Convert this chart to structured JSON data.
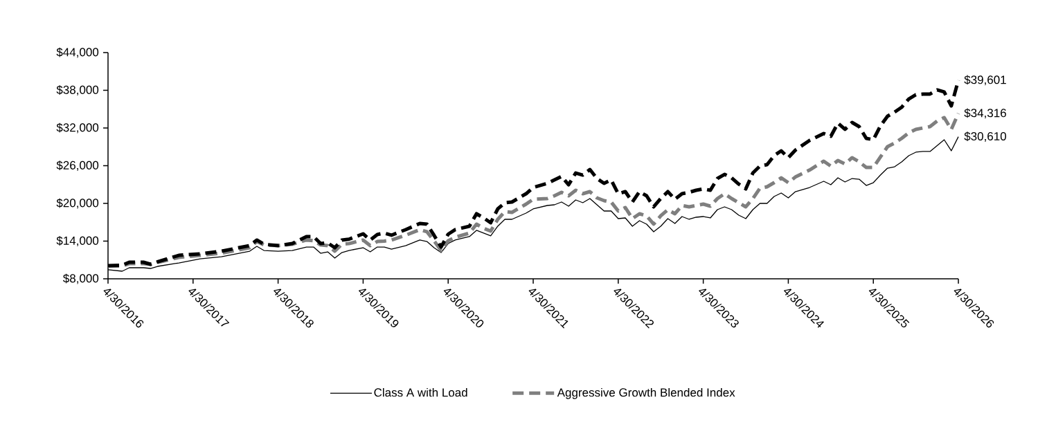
{
  "chart_data": {
    "type": "line",
    "xlim": [
      "2016-04",
      "2026-04"
    ],
    "xticks": [
      {
        "value": "2016-04",
        "label": "4/30/2016"
      },
      {
        "value": "2017-04",
        "label": "4/30/2017"
      },
      {
        "value": "2018-04",
        "label": "4/30/2018"
      },
      {
        "value": "2019-04",
        "label": "4/30/2019"
      },
      {
        "value": "2020-04",
        "label": "4/30/2020"
      },
      {
        "value": "2021-04",
        "label": "4/30/2021"
      },
      {
        "value": "2022-04",
        "label": "4/30/2022"
      },
      {
        "value": "2023-04",
        "label": "4/30/2023"
      },
      {
        "value": "2024-04",
        "label": "4/30/2024"
      },
      {
        "value": "2025-04",
        "label": "4/30/2025"
      },
      {
        "value": "2026-04",
        "label": "4/30/2026"
      }
    ],
    "ylim": [
      8000,
      44000
    ],
    "yticks": [
      {
        "value": 8000,
        "label": "$8,000"
      },
      {
        "value": 14000,
        "label": "$14,000"
      },
      {
        "value": 20000,
        "label": "$20,000"
      },
      {
        "value": 26000,
        "label": "$26,000"
      },
      {
        "value": 32000,
        "label": "$32,000"
      },
      {
        "value": 38000,
        "label": "$38,000"
      },
      {
        "value": 44000,
        "label": "$44,000"
      }
    ],
    "legend": "bottom",
    "x": [
      "2016-04",
      "2016-06",
      "2016-07",
      "2016-09",
      "2016-10",
      "2016-11",
      "2017-02",
      "2017-05",
      "2017-08",
      "2017-12",
      "2018-01",
      "2018-02",
      "2018-04",
      "2018-06",
      "2018-08",
      "2018-09",
      "2018-10",
      "2018-11",
      "2018-12",
      "2019-01",
      "2019-02",
      "2019-04",
      "2019-05",
      "2019-06",
      "2019-07",
      "2019-08",
      "2019-10",
      "2019-12",
      "2020-01",
      "2020-02",
      "2020-03",
      "2020-04",
      "2020-05",
      "2020-07",
      "2020-08",
      "2020-09",
      "2020-10",
      "2020-11",
      "2020-12",
      "2021-01",
      "2021-03",
      "2021-04",
      "2021-06",
      "2021-07",
      "2021-08",
      "2021-09",
      "2021-10",
      "2021-11",
      "2021-12",
      "2022-01",
      "2022-02",
      "2022-03",
      "2022-04",
      "2022-05",
      "2022-06",
      "2022-07",
      "2022-08",
      "2022-09",
      "2022-10",
      "2022-11",
      "2022-12",
      "2023-01",
      "2023-02",
      "2023-03",
      "2023-04",
      "2023-05",
      "2023-06",
      "2023-07",
      "2023-08",
      "2023-09",
      "2023-10",
      "2023-11",
      "2023-12",
      "2024-01",
      "2024-02",
      "2024-03",
      "2024-04",
      "2024-05",
      "2024-07",
      "2024-09",
      "2024-10",
      "2024-11",
      "2024-12",
      "2025-01",
      "2025-02",
      "2025-03",
      "2025-04",
      "2025-05",
      "2025-06",
      "2025-07",
      "2025-08",
      "2025-09",
      "2025-10",
      "2025-11",
      "2025-12",
      "2026-01",
      "2026-02",
      "2026-03",
      "2026-04"
    ],
    "series": [
      {
        "name": "Class A with Load",
        "color": "#000000",
        "line_style": "solid",
        "values": [
          9450,
          9210,
          9760,
          9760,
          9650,
          9980,
          10530,
          11190,
          11520,
          12400,
          13170,
          12510,
          12400,
          12510,
          13060,
          13060,
          12070,
          12290,
          11300,
          12180,
          12510,
          12950,
          12290,
          13060,
          13060,
          12730,
          13280,
          14170,
          13940,
          12950,
          12180,
          13610,
          14170,
          14720,
          15710,
          15270,
          14830,
          16370,
          17470,
          17470,
          18460,
          19120,
          19670,
          19780,
          20220,
          19560,
          20550,
          20110,
          20770,
          19780,
          18790,
          18790,
          17580,
          17690,
          16370,
          17250,
          16700,
          15490,
          16370,
          17580,
          16810,
          17910,
          17470,
          17800,
          17910,
          17690,
          19010,
          19450,
          19010,
          18130,
          17580,
          19010,
          20000,
          20000,
          21100,
          21650,
          20880,
          21870,
          22530,
          23520,
          22970,
          24070,
          23410,
          23960,
          23850,
          22860,
          23300,
          24510,
          25610,
          25830,
          26610,
          27600,
          28150,
          28260,
          28260,
          29200,
          30130,
          28370,
          30610
        ]
      },
      {
        "name": "Aggressive Growth Blended Index",
        "color": "#7f7f7f",
        "line_style": "dashed",
        "values": [
          10000,
          10040,
          10420,
          10420,
          10310,
          10600,
          11410,
          11740,
          12070,
          12950,
          13940,
          13390,
          13280,
          13500,
          14170,
          14060,
          13390,
          13280,
          12400,
          13500,
          13600,
          14170,
          13280,
          13940,
          14000,
          14170,
          14940,
          15820,
          15490,
          14060,
          12510,
          14060,
          14610,
          15270,
          16700,
          16040,
          15600,
          17470,
          18680,
          18570,
          19890,
          20660,
          20770,
          21210,
          21760,
          21210,
          22090,
          21540,
          21870,
          20880,
          20440,
          20220,
          18790,
          19340,
          17580,
          18350,
          18020,
          16700,
          18020,
          19010,
          18350,
          19670,
          19450,
          19670,
          19890,
          19560,
          20770,
          21540,
          20770,
          20100,
          19450,
          20770,
          22420,
          22640,
          23300,
          24070,
          23300,
          24200,
          25300,
          26720,
          25940,
          26830,
          26280,
          27270,
          26610,
          25720,
          25720,
          27380,
          29030,
          29590,
          30350,
          31230,
          31780,
          32000,
          32220,
          33100,
          33650,
          31780,
          34316
        ]
      },
      {
        "color": "#000000",
        "line_style": "dashed",
        "values": [
          10090,
          10150,
          10640,
          10640,
          10310,
          10700,
          11740,
          11960,
          12400,
          13280,
          14170,
          13500,
          13280,
          13610,
          14720,
          14720,
          13610,
          13720,
          12950,
          14170,
          14300,
          15160,
          14170,
          15050,
          15270,
          14940,
          15820,
          16810,
          16700,
          14940,
          13060,
          15100,
          15820,
          16370,
          18350,
          17690,
          16920,
          19120,
          20110,
          20220,
          21540,
          22530,
          23190,
          23740,
          24290,
          22970,
          24840,
          24510,
          25390,
          23960,
          23190,
          23740,
          21540,
          21870,
          20220,
          21870,
          21210,
          19450,
          20770,
          21870,
          20660,
          21540,
          21760,
          22090,
          22310,
          22090,
          23960,
          24620,
          24070,
          23080,
          22310,
          24840,
          25940,
          26170,
          27600,
          28370,
          27270,
          28480,
          30020,
          31120,
          30680,
          32770,
          31780,
          32880,
          32220,
          30350,
          30130,
          32330,
          33870,
          34530,
          35300,
          36620,
          37290,
          37400,
          37400,
          38060,
          37730,
          35520,
          39601
        ]
      }
    ],
    "annotations": [
      {
        "text": "$39,601",
        "x": "2026-04",
        "y": 39601
      },
      {
        "text": "$34,316",
        "x": "2026-04",
        "y": 34316
      },
      {
        "text": "$30,610",
        "x": "2026-04",
        "y": 30610
      }
    ]
  }
}
